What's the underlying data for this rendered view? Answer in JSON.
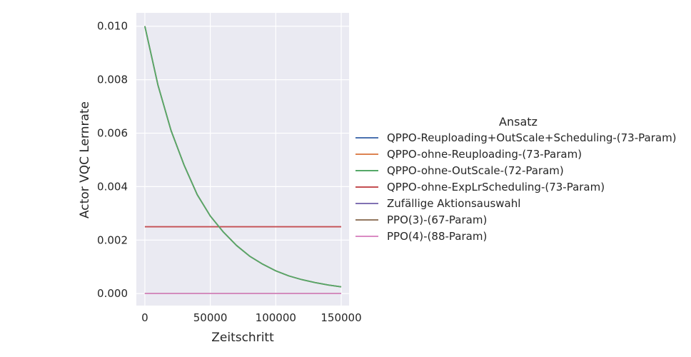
{
  "chart_data": {
    "type": "line",
    "title": "",
    "xlabel": "Zeitschritt",
    "ylabel": "Actor VQC Lernrate",
    "xlim": [
      -6500,
      156000
    ],
    "ylim": [
      -0.00045,
      0.0105
    ],
    "xticks": [
      0,
      50000,
      100000,
      150000
    ],
    "xtick_labels": [
      "0",
      "50000",
      "100000",
      "150000"
    ],
    "yticks": [
      0.0,
      0.002,
      0.004,
      0.006,
      0.008,
      0.01
    ],
    "ytick_labels": [
      "0.000",
      "0.002",
      "0.004",
      "0.006",
      "0.008",
      "0.010"
    ],
    "grid": true,
    "legend": {
      "title": "Ansatz",
      "placement": "center-right outside"
    },
    "colors": {
      "background": "#eaeaf2",
      "grid": "#ffffff"
    },
    "x": [
      0,
      10000,
      20000,
      30000,
      40000,
      50000,
      60000,
      70000,
      80000,
      90000,
      100000,
      110000,
      120000,
      130000,
      140000,
      150000
    ],
    "series": [
      {
        "name": "QPPO-Reuploading+OutScale+Scheduling-(73-Param)",
        "color": "#4c72b0",
        "values": [
          0.01,
          0.0078,
          0.0061,
          0.0048,
          0.0037,
          0.0029,
          0.0023,
          0.0018,
          0.0014,
          0.0011,
          0.00085,
          0.00066,
          0.00052,
          0.00041,
          0.00032,
          0.00025
        ]
      },
      {
        "name": "QPPO-ohne-Reuploading-(73-Param)",
        "color": "#dd8452",
        "values": [
          0.01,
          0.0078,
          0.0061,
          0.0048,
          0.0037,
          0.0029,
          0.0023,
          0.0018,
          0.0014,
          0.0011,
          0.00085,
          0.00066,
          0.00052,
          0.00041,
          0.00032,
          0.00025
        ]
      },
      {
        "name": "QPPO-ohne-OutScale-(72-Param)",
        "color": "#55a868",
        "values": [
          0.01,
          0.0078,
          0.0061,
          0.0048,
          0.0037,
          0.0029,
          0.0023,
          0.0018,
          0.0014,
          0.0011,
          0.00085,
          0.00066,
          0.00052,
          0.00041,
          0.00032,
          0.00025
        ]
      },
      {
        "name": "QPPO-ohne-ExpLrScheduling-(73-Param)",
        "color": "#c44e52",
        "values": [
          0.0025,
          0.0025,
          0.0025,
          0.0025,
          0.0025,
          0.0025,
          0.0025,
          0.0025,
          0.0025,
          0.0025,
          0.0025,
          0.0025,
          0.0025,
          0.0025,
          0.0025,
          0.0025
        ]
      },
      {
        "name": "Zufällige Aktionsauswahl",
        "color": "#8172b3",
        "values": [
          0.0,
          0.0,
          0.0,
          0.0,
          0.0,
          0.0,
          0.0,
          0.0,
          0.0,
          0.0,
          0.0,
          0.0,
          0.0,
          0.0,
          0.0,
          0.0
        ]
      },
      {
        "name": "PPO(3)-(67-Param)",
        "color": "#937860",
        "values": [
          0.0,
          0.0,
          0.0,
          0.0,
          0.0,
          0.0,
          0.0,
          0.0,
          0.0,
          0.0,
          0.0,
          0.0,
          0.0,
          0.0,
          0.0,
          0.0
        ]
      },
      {
        "name": "PPO(4)-(88-Param)",
        "color": "#da8bc3",
        "values": [
          0.0,
          0.0,
          0.0,
          0.0,
          0.0,
          0.0,
          0.0,
          0.0,
          0.0,
          0.0,
          0.0,
          0.0,
          0.0,
          0.0,
          0.0,
          0.0
        ]
      }
    ],
    "draw_order": [
      0,
      1,
      3,
      4,
      5,
      6,
      2
    ]
  }
}
